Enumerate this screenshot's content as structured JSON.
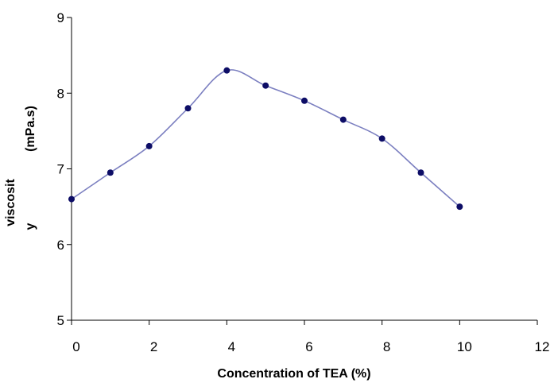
{
  "chart_data": {
    "type": "line",
    "title": "",
    "xlabel": "Concentration of TEA (%)",
    "ylabel_main": "(mPa.s)",
    "ylabel_parts": [
      "viscosit",
      "y"
    ],
    "xlim": [
      0,
      12
    ],
    "ylim": [
      5,
      9
    ],
    "xticks": [
      0,
      2,
      4,
      6,
      8,
      10,
      12
    ],
    "yticks": [
      5,
      6,
      7,
      8,
      9
    ],
    "grid": false,
    "legend": "none",
    "line_color": "#7b7fc0",
    "marker_color": "#0d0d66",
    "smooth": true,
    "series": [
      {
        "x": [
          0,
          1,
          2,
          3,
          4,
          5,
          6,
          7,
          8,
          9,
          10
        ],
        "y": [
          6.6,
          6.95,
          7.3,
          7.8,
          8.3,
          8.1,
          7.9,
          7.65,
          7.4,
          6.95,
          6.5
        ]
      }
    ]
  }
}
